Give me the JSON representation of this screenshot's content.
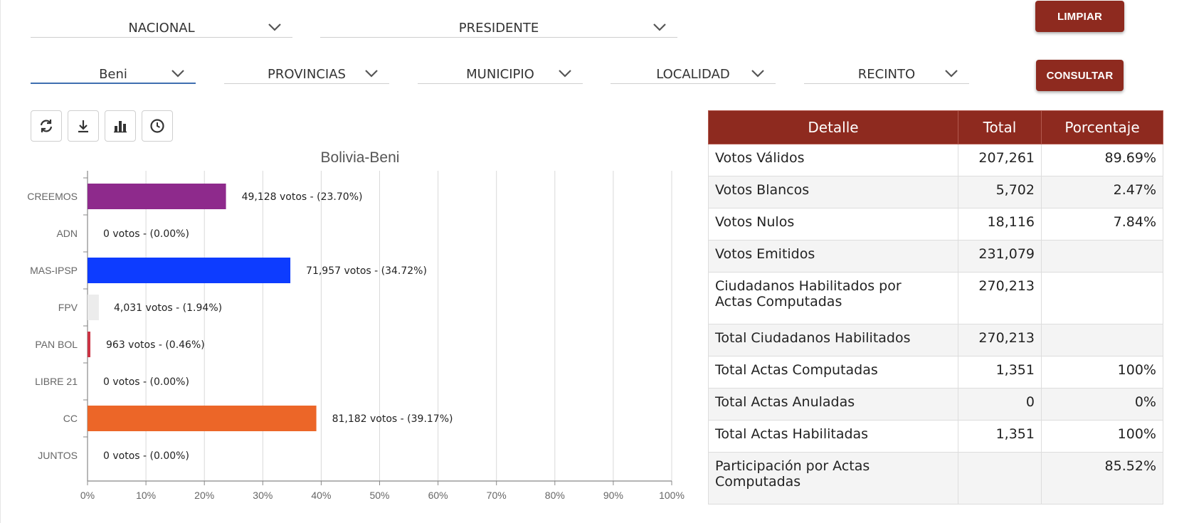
{
  "filters": {
    "row1": [
      {
        "name": "ambito-select",
        "value": "NACIONAL"
      },
      {
        "name": "eleccion-select",
        "value": "PRESIDENTE"
      }
    ],
    "row2": [
      {
        "name": "departamento-select",
        "value": "Beni"
      },
      {
        "name": "provincias-select",
        "value": "PROVINCIAS"
      },
      {
        "name": "municipio-select",
        "value": "MUNICIPIO"
      },
      {
        "name": "localidad-select",
        "value": "LOCALIDAD"
      },
      {
        "name": "recinto-select",
        "value": "RECINTO"
      }
    ]
  },
  "buttons": {
    "limpiar": "LIMPIAR",
    "consultar": "CONSULTAR"
  },
  "toolbar": {
    "icons": [
      "refresh-icon",
      "download-icon",
      "bar-chart-icon",
      "clock-icon"
    ]
  },
  "chart_data": {
    "type": "bar",
    "orientation": "horizontal",
    "title": "Bolivia-Beni",
    "categories": [
      "CREEMOS",
      "ADN",
      "MAS-IPSP",
      "FPV",
      "PAN BOL",
      "LIBRE 21",
      "CC",
      "JUNTOS"
    ],
    "values": [
      23.7,
      0.0,
      34.72,
      1.94,
      0.46,
      0.0,
      39.17,
      0.0
    ],
    "data_labels": [
      "49,128 votos - (23.70%)",
      "0 votos - (0.00%)",
      "71,957 votos - (34.72%)",
      "4,031 votos - (1.94%)",
      "963 votos - (0.46%)",
      "0 votos - (0.00%)",
      "81,182 votos - (39.17%)",
      "0 votos - (0.00%)"
    ],
    "colors": [
      "#8e2a8c",
      "#e0e0e0",
      "#0d3cff",
      "#ececec",
      "#cc3344",
      "#ffffff",
      "#ec6628",
      "#ffffff"
    ],
    "x_ticks": [
      "0%",
      "10%",
      "20%",
      "30%",
      "40%",
      "50%",
      "60%",
      "70%",
      "80%",
      "90%",
      "100%"
    ],
    "xlim": [
      0,
      100
    ],
    "grid": true
  },
  "table": {
    "headers": [
      "Detalle",
      "Total",
      "Porcentaje"
    ],
    "rows": [
      [
        "Votos Válidos",
        "207,261",
        "89.69%"
      ],
      [
        "Votos Blancos",
        "5,702",
        "2.47%"
      ],
      [
        "Votos Nulos",
        "18,116",
        "7.84%"
      ],
      [
        "Votos Emitidos",
        "231,079",
        ""
      ],
      [
        "Ciudadanos Habilitados por Actas Computadas",
        "270,213",
        ""
      ],
      [
        "Total Ciudadanos Habilitados",
        "270,213",
        ""
      ],
      [
        "Total Actas Computadas",
        "1,351",
        "100%"
      ],
      [
        "Total Actas Anuladas",
        "0",
        "0%"
      ],
      [
        "Total Actas Habilitadas",
        "1,351",
        "100%"
      ],
      [
        "Participación por Actas Computadas",
        "",
        "85.52%"
      ]
    ]
  }
}
